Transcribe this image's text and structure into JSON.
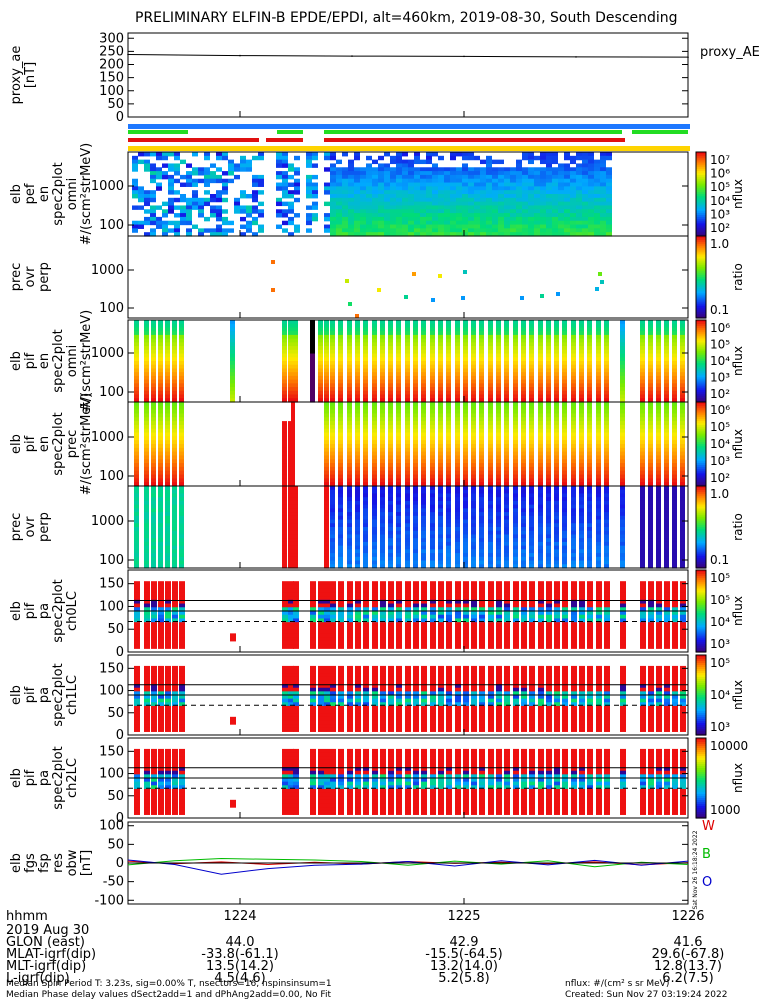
{
  "title": "PRELIMINARY ELFIN-B EPDE/EPDI, alt=460km, 2019-08-30, South Descending",
  "colors": {
    "bar_blue": "#1e78ff",
    "bar_green": "#22dd22",
    "bar_red": "#e01010",
    "bar_yellow": "#ffd400",
    "flux_red": "#ee1111",
    "vec_w": "#dd0000",
    "vec_b": "#00bb00",
    "vec_o": "#0000cc"
  },
  "chart_data": [
    {
      "type": "line",
      "name": "proxy_ae",
      "ylabel": "proxy_ae [nT]",
      "legend": "proxy_AE",
      "yticks": [
        "300",
        "250",
        "200",
        "150",
        "100",
        "50",
        "0"
      ],
      "ylim": [
        0,
        320
      ],
      "x": [
        "1223.5",
        "1224.0",
        "1224.5",
        "1225.0",
        "1225.5",
        "1226.0"
      ],
      "values": [
        238,
        234,
        232,
        231,
        229,
        228
      ]
    },
    {
      "type": "heatmap",
      "name": "elb_pef_en_spec2plot_omni",
      "ylabel": "elb pef en spec2plot omni #/(scm²strMeV)",
      "yticks": [
        "1000",
        "100"
      ],
      "colorbar": {
        "label": "nflux",
        "ticks": [
          "10⁷",
          "10⁶",
          "10⁵",
          "10⁴",
          "10³",
          "10²"
        ]
      }
    },
    {
      "type": "scatter",
      "name": "prec_ovr_perp_e",
      "ylabel": "prec ovr perp",
      "yticks": [
        "1000",
        "100"
      ],
      "colorbar": {
        "label": "ratio",
        "ticks": [
          "1.0",
          "0.1"
        ]
      }
    },
    {
      "type": "heatmap",
      "name": "elb_pif_en_spec2plot_omni",
      "ylabel": "elb pif en spec2plot omni #/(scm²strMeV)",
      "yticks": [
        "1000",
        "100"
      ],
      "colorbar": {
        "label": "nflux",
        "ticks": [
          "10⁶",
          "10⁵",
          "10⁴",
          "10³",
          "10²"
        ]
      }
    },
    {
      "type": "heatmap",
      "name": "elb_pif_en_spec2plot_prec",
      "ylabel": "elb pif en spec2plot prec #/(scm²strMeV)",
      "yticks": [
        "1000",
        "100"
      ],
      "colorbar": {
        "label": "nflux",
        "ticks": [
          "10⁶",
          "10⁵",
          "10⁴",
          "10³",
          "10²"
        ]
      }
    },
    {
      "type": "heatmap",
      "name": "prec_ovr_perp_i",
      "ylabel": "prec ovr perp",
      "yticks": [
        "1000",
        "100"
      ],
      "colorbar": {
        "label": "ratio",
        "ticks": [
          "1.0",
          "0.1"
        ]
      }
    },
    {
      "type": "heatmap",
      "name": "elb_pif_pa_spec2plot_ch0LC",
      "ylabel": "elb pif pa spec2plot ch0LC",
      "yticks": [
        "150",
        "100",
        "50",
        "0"
      ],
      "ylim": [
        0,
        180
      ],
      "colorbar": {
        "label": "nflux",
        "ticks": [
          "10⁵",
          "10⁵",
          "10⁴",
          "10³"
        ]
      }
    },
    {
      "type": "heatmap",
      "name": "elb_pif_pa_spec2plot_ch1LC",
      "ylabel": "elb pif pa spec2plot ch1LC",
      "yticks": [
        "150",
        "100",
        "50",
        "0"
      ],
      "ylim": [
        0,
        180
      ],
      "colorbar": {
        "label": "nflux",
        "ticks": [
          "10⁵",
          "10⁴",
          "10³"
        ]
      }
    },
    {
      "type": "heatmap",
      "name": "elb_pif_pa_spec2plot_ch2LC",
      "ylabel": "elb pif pa spec2plot ch2LC",
      "yticks": [
        "150",
        "100",
        "50",
        "0"
      ],
      "ylim": [
        0,
        180
      ],
      "colorbar": {
        "label": "nflux",
        "ticks": [
          "10000",
          "1000"
        ]
      }
    },
    {
      "type": "line",
      "name": "elb_fgs_fsp_res_obw",
      "ylabel": "elb fgs fsp res obw [nT]",
      "yticks": [
        "100",
        "50",
        "0",
        "-50",
        "-100"
      ],
      "ylim": [
        -110,
        110
      ],
      "series": [
        {
          "name": "W",
          "values": [
            5,
            -2,
            3,
            -4,
            2,
            -3,
            4,
            -1,
            2,
            -2,
            3,
            -5,
            1
          ]
        },
        {
          "name": "B",
          "values": [
            -5,
            6,
            12,
            10,
            8,
            4,
            -6,
            5,
            -3,
            6,
            -10,
            2,
            -4
          ]
        },
        {
          "name": "O",
          "values": [
            8,
            -4,
            -30,
            -15,
            -6,
            -3,
            4,
            -8,
            6,
            -5,
            7,
            -6,
            5
          ]
        }
      ]
    }
  ],
  "xaxis": {
    "label_hhmm": "hhmm",
    "date": "2019 Aug 30",
    "ticks": [
      "1224",
      "1225",
      "1226"
    ]
  },
  "rows": [
    {
      "label": "GLON (east)",
      "values": [
        "44.0",
        "42.9",
        "41.6"
      ]
    },
    {
      "label": "MLAT-igrf(dip)",
      "values": [
        "-33.8(-61.1)",
        "-15.5(-64.5)",
        "29.6(-67.8)"
      ]
    },
    {
      "label": "MLT-igrf(dip)",
      "values": [
        "13.5(14.2)",
        "13.2(14.0)",
        "12.8(13.7)"
      ]
    },
    {
      "label": "L-igrf(dip)",
      "values": [
        "4.5(4.6)",
        "5.2(5.8)",
        "6.2(7.5)"
      ]
    }
  ],
  "footer": {
    "line1": "Median Spin Period T: 3.23s, sig=0.00% T, nsectors=16, nspinsinsum=1",
    "line2": "Median Phase delay values dSect2add=1 and dPhAng2add=0.00, No Fit",
    "nflux_unit": "nflux: #/(cm² s sr MeV)",
    "created": "Created: Sun Nov 27 03:19:24 2022",
    "stamp": "Sat Nov 26 16:18:24 2022"
  }
}
